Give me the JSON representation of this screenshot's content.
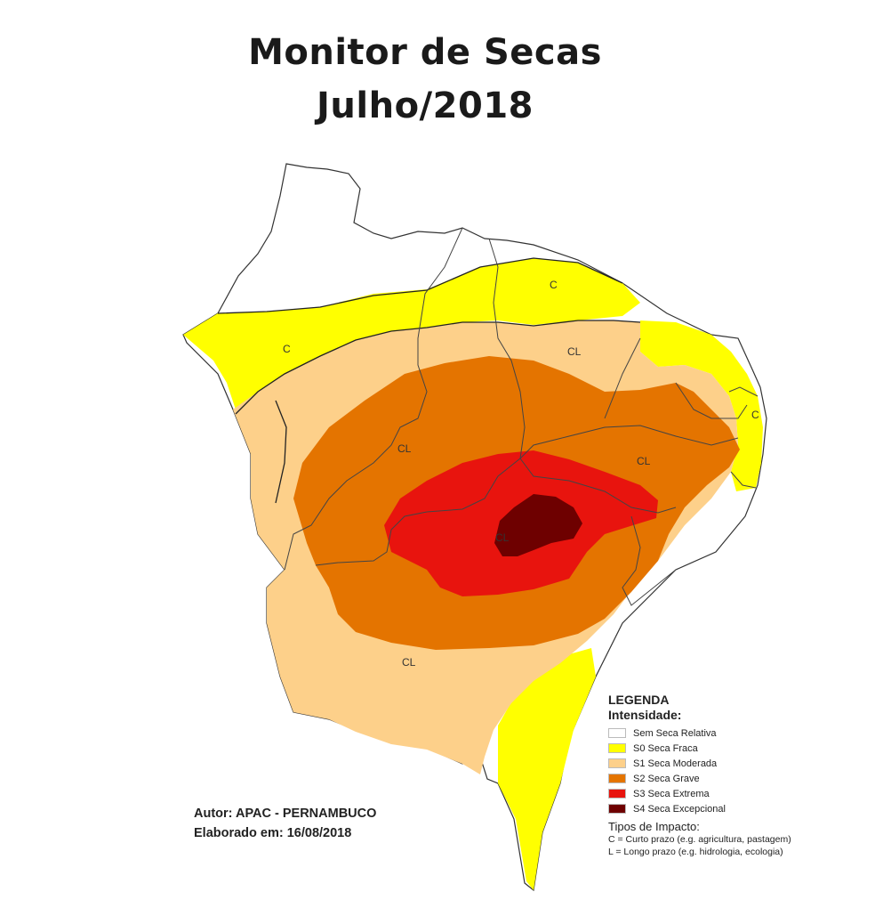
{
  "title": {
    "line1": "Monitor de Secas",
    "line2": "Julho/2018"
  },
  "colors": {
    "s0": "#ffff00",
    "s1": "#fdd08a",
    "s2": "#e47400",
    "s3": "#e8140e",
    "s4": "#6e0000",
    "none": "#ffffff",
    "border": "#333333"
  },
  "map_labels": [
    "C",
    "C",
    "C",
    "CL",
    "CL",
    "CL",
    "CL",
    "CL",
    "CL"
  ],
  "legend": {
    "title": "LEGENDA",
    "intensity_title": "Intensidade:",
    "items": [
      {
        "label": "Sem Seca Relativa",
        "color": "#ffffff"
      },
      {
        "label": "S0 Seca Fraca",
        "color": "#ffff00"
      },
      {
        "label": "S1 Seca Moderada",
        "color": "#fdd08a"
      },
      {
        "label": "S2 Seca Grave",
        "color": "#e47400"
      },
      {
        "label": "S3 Seca Extrema",
        "color": "#e8140e"
      },
      {
        "label": "S4 Seca Excepcional",
        "color": "#6e0000"
      }
    ],
    "impact_title": "Tipos de Impacto:",
    "impact_items": [
      "C = Curto prazo (e.g. agricultura, pastagem)",
      "L = Longo prazo (e.g. hidrologia, ecologia)"
    ]
  },
  "author": {
    "line1": "Autor: APAC - PERNAMBUCO",
    "line2": "Elaborado em: 16/08/2018"
  }
}
